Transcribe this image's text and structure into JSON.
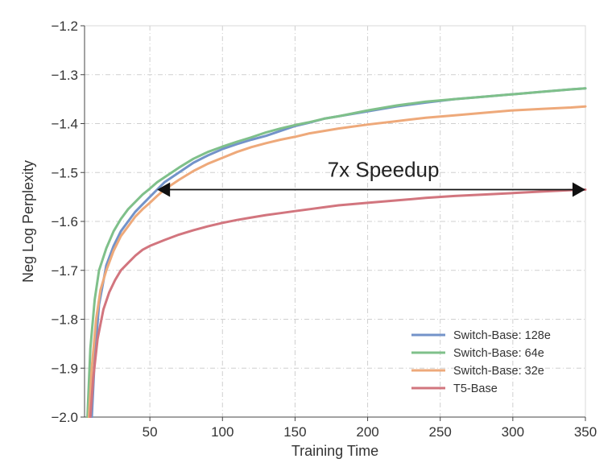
{
  "chart_data": {
    "type": "line",
    "xlabel": "Training Time",
    "ylabel": "Neg Log Perplexity",
    "xlim": [
      5,
      350
    ],
    "ylim": [
      -2.0,
      -1.2
    ],
    "xticks": [
      50,
      100,
      150,
      200,
      250,
      300,
      350
    ],
    "yticks": [
      -2.0,
      -1.9,
      -1.8,
      -1.7,
      -1.6,
      -1.5,
      -1.4,
      -1.3,
      -1.2
    ],
    "xtick_labels": [
      "50",
      "100",
      "150",
      "200",
      "250",
      "300",
      "350"
    ],
    "ytick_labels": [
      "−2.0",
      "−1.9",
      "−1.8",
      "−1.7",
      "−1.6",
      "−1.5",
      "−1.4",
      "−1.3",
      "−1.2"
    ],
    "grid": true,
    "legend_position": "lower-right",
    "series": [
      {
        "name": "Switch-Base: 128e",
        "color": "#7393c9",
        "x": [
          10,
          12,
          15,
          20,
          25,
          30,
          35,
          40,
          45,
          50,
          55,
          60,
          70,
          80,
          90,
          100,
          110,
          120,
          130,
          140,
          150,
          160,
          170,
          180,
          200,
          220,
          240,
          260,
          280,
          300,
          320,
          340,
          350
        ],
        "y": [
          -2.0,
          -1.88,
          -1.77,
          -1.69,
          -1.65,
          -1.62,
          -1.6,
          -1.58,
          -1.565,
          -1.55,
          -1.535,
          -1.52,
          -1.5,
          -1.48,
          -1.465,
          -1.452,
          -1.442,
          -1.433,
          -1.425,
          -1.415,
          -1.405,
          -1.398,
          -1.39,
          -1.385,
          -1.375,
          -1.365,
          -1.357,
          -1.35,
          -1.345,
          -1.34,
          -1.335,
          -1.33,
          -1.328
        ]
      },
      {
        "name": "Switch-Base: 64e",
        "color": "#7fc08a",
        "x": [
          7,
          9,
          12,
          15,
          20,
          25,
          30,
          35,
          40,
          45,
          50,
          55,
          60,
          70,
          80,
          90,
          100,
          110,
          120,
          130,
          140,
          150,
          160,
          170,
          180,
          200,
          220,
          240,
          260,
          280,
          300,
          320,
          340,
          350
        ],
        "y": [
          -2.0,
          -1.86,
          -1.76,
          -1.7,
          -1.655,
          -1.62,
          -1.595,
          -1.575,
          -1.56,
          -1.545,
          -1.533,
          -1.52,
          -1.51,
          -1.49,
          -1.472,
          -1.458,
          -1.447,
          -1.437,
          -1.428,
          -1.418,
          -1.41,
          -1.403,
          -1.397,
          -1.39,
          -1.385,
          -1.373,
          -1.363,
          -1.355,
          -1.35,
          -1.345,
          -1.34,
          -1.335,
          -1.33,
          -1.328
        ]
      },
      {
        "name": "Switch-Base: 32e",
        "color": "#eea97a",
        "x": [
          8,
          10,
          13,
          16,
          20,
          25,
          30,
          35,
          40,
          45,
          50,
          55,
          60,
          70,
          80,
          90,
          100,
          110,
          120,
          130,
          140,
          150,
          160,
          170,
          180,
          200,
          220,
          240,
          260,
          280,
          300,
          320,
          340,
          350
        ],
        "y": [
          -2.0,
          -1.9,
          -1.8,
          -1.74,
          -1.7,
          -1.66,
          -1.63,
          -1.61,
          -1.59,
          -1.575,
          -1.562,
          -1.548,
          -1.535,
          -1.515,
          -1.497,
          -1.482,
          -1.47,
          -1.458,
          -1.448,
          -1.44,
          -1.433,
          -1.427,
          -1.42,
          -1.415,
          -1.41,
          -1.402,
          -1.395,
          -1.388,
          -1.383,
          -1.378,
          -1.373,
          -1.37,
          -1.367,
          -1.365
        ]
      },
      {
        "name": "T5-Base",
        "color": "#d2757e",
        "x": [
          9,
          11,
          14,
          18,
          22,
          26,
          30,
          35,
          40,
          45,
          50,
          60,
          70,
          80,
          90,
          100,
          110,
          120,
          130,
          140,
          150,
          160,
          170,
          180,
          200,
          220,
          240,
          260,
          280,
          300,
          320,
          340,
          350
        ],
        "y": [
          -2.0,
          -1.92,
          -1.84,
          -1.78,
          -1.745,
          -1.72,
          -1.7,
          -1.685,
          -1.67,
          -1.658,
          -1.65,
          -1.638,
          -1.627,
          -1.618,
          -1.61,
          -1.603,
          -1.597,
          -1.592,
          -1.587,
          -1.583,
          -1.579,
          -1.575,
          -1.571,
          -1.567,
          -1.562,
          -1.557,
          -1.552,
          -1.548,
          -1.545,
          -1.542,
          -1.539,
          -1.536,
          -1.535
        ]
      }
    ],
    "annotations": [
      {
        "text": "7x Speedup",
        "type": "double-arrow",
        "y": -1.535,
        "x_start": 55,
        "x_end": 350
      }
    ]
  }
}
